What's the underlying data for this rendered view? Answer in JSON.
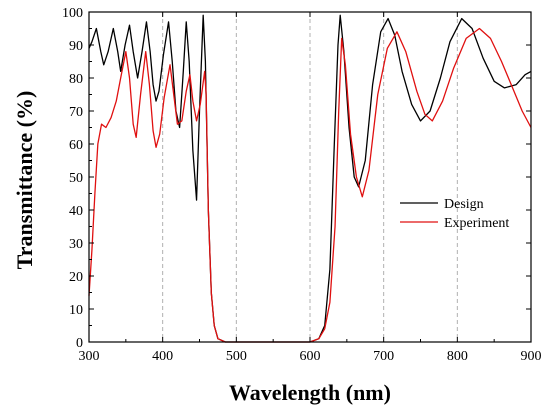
{
  "chart_data": {
    "type": "line",
    "xlabel": "Wavelength (nm)",
    "ylabel": "Transmittance (%)",
    "xlim": [
      300,
      900
    ],
    "ylim": [
      0,
      100
    ],
    "xticks": [
      300,
      400,
      500,
      600,
      700,
      800,
      900
    ],
    "yticks": [
      0,
      10,
      20,
      30,
      40,
      50,
      60,
      70,
      80,
      90,
      100
    ],
    "grid": "vertical dashed",
    "legend_position": "center-right",
    "series": [
      {
        "name": "Design",
        "color": "#000000",
        "points": [
          [
            300,
            89
          ],
          [
            304,
            91
          ],
          [
            310,
            95
          ],
          [
            316,
            88
          ],
          [
            320,
            84
          ],
          [
            326,
            88
          ],
          [
            333,
            95
          ],
          [
            339,
            88
          ],
          [
            343,
            82
          ],
          [
            349,
            90
          ],
          [
            355,
            96
          ],
          [
            360,
            88
          ],
          [
            366,
            80
          ],
          [
            372,
            88
          ],
          [
            378,
            97
          ],
          [
            383,
            88
          ],
          [
            387,
            78
          ],
          [
            391,
            73
          ],
          [
            395,
            76
          ],
          [
            401,
            87
          ],
          [
            408,
            97
          ],
          [
            413,
            85
          ],
          [
            418,
            70
          ],
          [
            423,
            65
          ],
          [
            428,
            82
          ],
          [
            432,
            97
          ],
          [
            436,
            85
          ],
          [
            441,
            58
          ],
          [
            446,
            43
          ],
          [
            450,
            70
          ],
          [
            455,
            99
          ],
          [
            458,
            85
          ],
          [
            462,
            40
          ],
          [
            466,
            15
          ],
          [
            470,
            5
          ],
          [
            475,
            1
          ],
          [
            485,
            0
          ],
          [
            600,
            0
          ],
          [
            612,
            1
          ],
          [
            620,
            5
          ],
          [
            627,
            22
          ],
          [
            633,
            60
          ],
          [
            638,
            90
          ],
          [
            641,
            99
          ],
          [
            646,
            88
          ],
          [
            653,
            65
          ],
          [
            660,
            50
          ],
          [
            666,
            47
          ],
          [
            675,
            55
          ],
          [
            685,
            78
          ],
          [
            696,
            94
          ],
          [
            706,
            98
          ],
          [
            715,
            93
          ],
          [
            725,
            82
          ],
          [
            738,
            72
          ],
          [
            750,
            67
          ],
          [
            763,
            70
          ],
          [
            777,
            80
          ],
          [
            790,
            91
          ],
          [
            806,
            98
          ],
          [
            820,
            95
          ],
          [
            835,
            86
          ],
          [
            850,
            79
          ],
          [
            864,
            77
          ],
          [
            880,
            78
          ],
          [
            892,
            81
          ],
          [
            900,
            82
          ]
        ]
      },
      {
        "name": "Experiment",
        "color": "#e01010",
        "points": [
          [
            300,
            14
          ],
          [
            304,
            28
          ],
          [
            308,
            45
          ],
          [
            312,
            60
          ],
          [
            317,
            66
          ],
          [
            323,
            65
          ],
          [
            330,
            68
          ],
          [
            337,
            73
          ],
          [
            343,
            80
          ],
          [
            350,
            88
          ],
          [
            355,
            80
          ],
          [
            360,
            66
          ],
          [
            364,
            62
          ],
          [
            370,
            75
          ],
          [
            377,
            88
          ],
          [
            382,
            78
          ],
          [
            387,
            64
          ],
          [
            391,
            59
          ],
          [
            396,
            63
          ],
          [
            402,
            74
          ],
          [
            410,
            84
          ],
          [
            415,
            75
          ],
          [
            420,
            66
          ],
          [
            426,
            67
          ],
          [
            432,
            76
          ],
          [
            437,
            81
          ],
          [
            441,
            73
          ],
          [
            446,
            67
          ],
          [
            451,
            72
          ],
          [
            457,
            82
          ],
          [
            459,
            75
          ],
          [
            462,
            40
          ],
          [
            466,
            15
          ],
          [
            470,
            5
          ],
          [
            475,
            1
          ],
          [
            485,
            0
          ],
          [
            600,
            0
          ],
          [
            612,
            1
          ],
          [
            620,
            4
          ],
          [
            627,
            12
          ],
          [
            634,
            35
          ],
          [
            639,
            70
          ],
          [
            643,
            92
          ],
          [
            648,
            84
          ],
          [
            655,
            63
          ],
          [
            663,
            50
          ],
          [
            671,
            44
          ],
          [
            680,
            52
          ],
          [
            692,
            75
          ],
          [
            705,
            89
          ],
          [
            718,
            94
          ],
          [
            730,
            88
          ],
          [
            745,
            76
          ],
          [
            756,
            69
          ],
          [
            766,
            67
          ],
          [
            780,
            73
          ],
          [
            795,
            83
          ],
          [
            812,
            92
          ],
          [
            830,
            95
          ],
          [
            845,
            92
          ],
          [
            860,
            85
          ],
          [
            875,
            77
          ],
          [
            888,
            70
          ],
          [
            900,
            65
          ]
        ]
      }
    ]
  }
}
